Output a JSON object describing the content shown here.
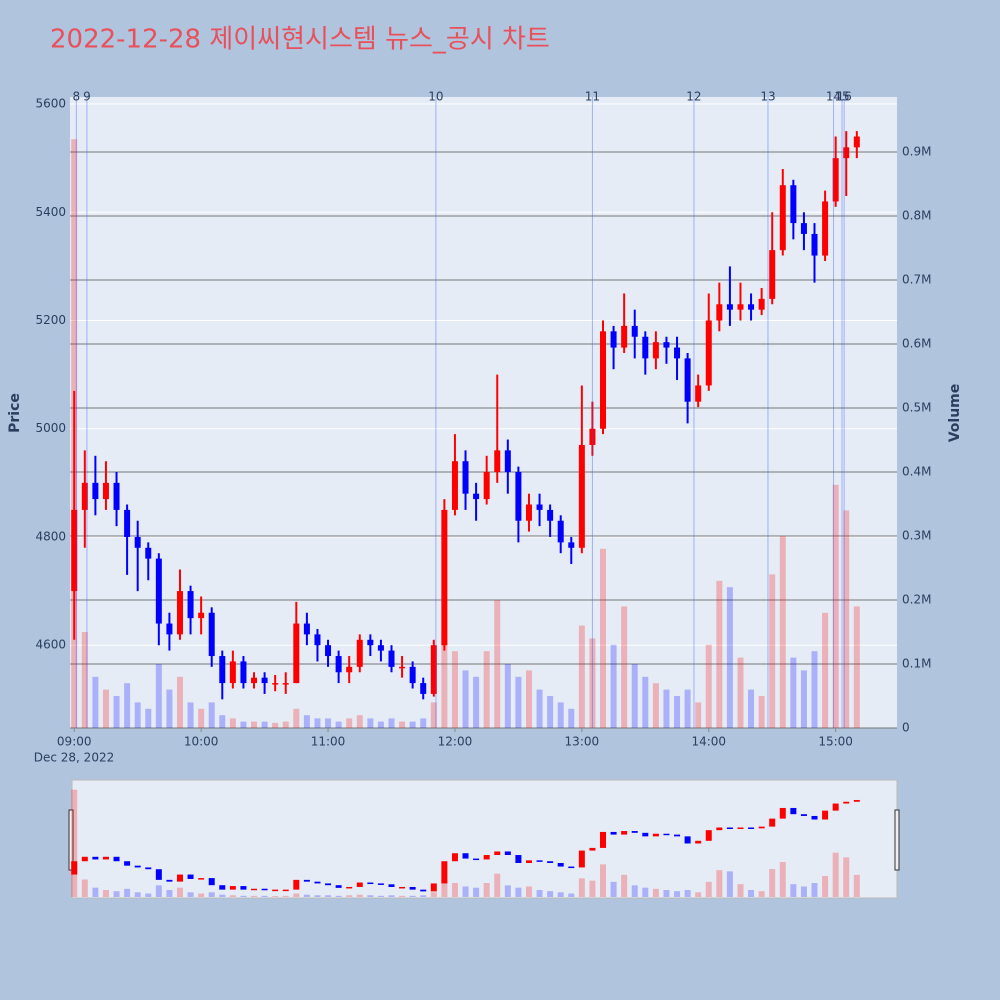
{
  "chart_data": {
    "type": "candlestick",
    "title": "2022-12-28 제이씨현시스템 뉴스_공시 차트",
    "ylabel": "Price",
    "y2label": "Volume",
    "x_date_label": "Dec 28, 2022",
    "up_color": "#ff0000",
    "down_color": "#0000ff",
    "grid": true,
    "rangeslider": true,
    "x": [
      "2022-12-28 09:00",
      "2022-12-28 09:05",
      "2022-12-28 09:10",
      "2022-12-28 09:15",
      "2022-12-28 09:20",
      "2022-12-28 09:25",
      "2022-12-28 09:30",
      "2022-12-28 09:35",
      "2022-12-28 09:40",
      "2022-12-28 09:45",
      "2022-12-28 09:50",
      "2022-12-28 09:55",
      "2022-12-28 10:00",
      "2022-12-28 10:05",
      "2022-12-28 10:10",
      "2022-12-28 10:15",
      "2022-12-28 10:20",
      "2022-12-28 10:25",
      "2022-12-28 10:30",
      "2022-12-28 10:35",
      "2022-12-28 10:40",
      "2022-12-28 10:45",
      "2022-12-28 10:50",
      "2022-12-28 10:55",
      "2022-12-28 11:00",
      "2022-12-28 11:05",
      "2022-12-28 11:10",
      "2022-12-28 11:15",
      "2022-12-28 11:20",
      "2022-12-28 11:25",
      "2022-12-28 11:30",
      "2022-12-28 11:35",
      "2022-12-28 11:40",
      "2022-12-28 11:45",
      "2022-12-28 11:50",
      "2022-12-28 11:55",
      "2022-12-28 12:00",
      "2022-12-28 12:05",
      "2022-12-28 12:10",
      "2022-12-28 12:15",
      "2022-12-28 12:20",
      "2022-12-28 12:25",
      "2022-12-28 12:30",
      "2022-12-28 12:35",
      "2022-12-28 12:40",
      "2022-12-28 12:45",
      "2022-12-28 12:50",
      "2022-12-28 12:55",
      "2022-12-28 13:00",
      "2022-12-28 13:05",
      "2022-12-28 13:10",
      "2022-12-28 13:15",
      "2022-12-28 13:20",
      "2022-12-28 13:25",
      "2022-12-28 13:30",
      "2022-12-28 13:35",
      "2022-12-28 13:40",
      "2022-12-28 13:45",
      "2022-12-28 13:50",
      "2022-12-28 13:55",
      "2022-12-28 14:00",
      "2022-12-28 14:05",
      "2022-12-28 14:10",
      "2022-12-28 14:15",
      "2022-12-28 14:20",
      "2022-12-28 14:25",
      "2022-12-28 14:30",
      "2022-12-28 14:35",
      "2022-12-28 14:40",
      "2022-12-28 14:45",
      "2022-12-28 14:50",
      "2022-12-28 14:55",
      "2022-12-28 15:00",
      "2022-12-28 15:05",
      "2022-12-28 15:10"
    ],
    "open": [
      4700,
      4850,
      4900,
      4870,
      4900,
      4850,
      4800,
      4780,
      4760,
      4640,
      4620,
      4700,
      4650,
      4660,
      4580,
      4530,
      4570,
      4530,
      4540,
      4530,
      4530,
      4530,
      4640,
      4620,
      4600,
      4580,
      4550,
      4560,
      4610,
      4600,
      4590,
      4560,
      4560,
      4530,
      4510,
      4600,
      4850,
      4940,
      4880,
      4870,
      4920,
      4960,
      4920,
      4830,
      4860,
      4850,
      4830,
      4790,
      4780,
      4970,
      5000,
      5180,
      5150,
      5190,
      5170,
      5130,
      5160,
      5150,
      5130,
      5050,
      5080,
      5200,
      5230,
      5220,
      5230,
      5220,
      5240,
      5330,
      5450,
      5380,
      5360,
      5320,
      5420,
      5500,
      5520
    ],
    "high": [
      5070,
      4960,
      4950,
      4940,
      4920,
      4860,
      4830,
      4790,
      4770,
      4660,
      4740,
      4710,
      4690,
      4670,
      4590,
      4590,
      4580,
      4550,
      4550,
      4545,
      4550,
      4680,
      4660,
      4630,
      4610,
      4590,
      4580,
      4620,
      4620,
      4610,
      4600,
      4580,
      4570,
      4540,
      4610,
      4870,
      4990,
      4960,
      4900,
      4950,
      5100,
      4980,
      4930,
      4880,
      4880,
      4860,
      4840,
      4800,
      5080,
      5050,
      5200,
      5190,
      5250,
      5220,
      5180,
      5180,
      5170,
      5170,
      5140,
      5100,
      5250,
      5270,
      5300,
      5270,
      5250,
      5260,
      5400,
      5480,
      5460,
      5400,
      5380,
      5440,
      5540,
      5550,
      5550
    ],
    "low": [
      4610,
      4780,
      4840,
      4850,
      4820,
      4730,
      4700,
      4720,
      4600,
      4590,
      4610,
      4620,
      4620,
      4560,
      4500,
      4520,
      4520,
      4520,
      4510,
      4515,
      4510,
      4530,
      4600,
      4570,
      4560,
      4530,
      4530,
      4550,
      4580,
      4570,
      4550,
      4540,
      4520,
      4500,
      4505,
      4590,
      4840,
      4850,
      4830,
      4860,
      4900,
      4880,
      4790,
      4810,
      4820,
      4800,
      4770,
      4750,
      4770,
      4950,
      4990,
      5110,
      5140,
      5130,
      5100,
      5110,
      5120,
      5090,
      5010,
      5040,
      5070,
      5180,
      5190,
      5200,
      5200,
      5210,
      5230,
      5320,
      5350,
      5330,
      5270,
      5310,
      5410,
      5430,
      5500
    ],
    "close": [
      4850,
      4900,
      4870,
      4900,
      4850,
      4800,
      4780,
      4760,
      4640,
      4620,
      4700,
      4650,
      4660,
      4580,
      4530,
      4570,
      4530,
      4540,
      4530,
      4530,
      4530,
      4640,
      4620,
      4600,
      4580,
      4550,
      4560,
      4610,
      4600,
      4590,
      4560,
      4560,
      4530,
      4510,
      4600,
      4850,
      4940,
      4880,
      4870,
      4920,
      4960,
      4920,
      4830,
      4860,
      4850,
      4830,
      4790,
      4780,
      4970,
      5000,
      5180,
      5150,
      5190,
      5170,
      5130,
      5160,
      5150,
      5130,
      5050,
      5080,
      5200,
      5230,
      5220,
      5230,
      5220,
      5240,
      5330,
      5450,
      5380,
      5360,
      5320,
      5420,
      5500,
      5520,
      5540
    ],
    "volume": [
      920000,
      150000,
      80000,
      60000,
      50000,
      70000,
      40000,
      30000,
      100000,
      60000,
      80000,
      40000,
      30000,
      40000,
      20000,
      15000,
      10000,
      10000,
      10000,
      8000,
      10000,
      30000,
      20000,
      15000,
      15000,
      10000,
      15000,
      20000,
      15000,
      10000,
      15000,
      10000,
      10000,
      15000,
      40000,
      150000,
      120000,
      90000,
      80000,
      120000,
      200000,
      100000,
      80000,
      90000,
      60000,
      50000,
      40000,
      30000,
      160000,
      140000,
      280000,
      130000,
      190000,
      100000,
      80000,
      70000,
      60000,
      50000,
      60000,
      40000,
      130000,
      230000,
      220000,
      110000,
      60000,
      50000,
      240000,
      300000,
      110000,
      90000,
      120000,
      180000,
      380000,
      340000,
      190000
    ],
    "xlim": [
      "2022-12-28 08:58",
      "2022-12-28 15:29"
    ],
    "xticks": [
      {
        "value": "2022-12-28 09:00",
        "label": "09:00"
      },
      {
        "value": "2022-12-28 10:00",
        "label": "10:00"
      },
      {
        "value": "2022-12-28 11:00",
        "label": "11:00"
      },
      {
        "value": "2022-12-28 12:00",
        "label": "12:00"
      },
      {
        "value": "2022-12-28 13:00",
        "label": "13:00"
      },
      {
        "value": "2022-12-28 14:00",
        "label": "14:00"
      },
      {
        "value": "2022-12-28 15:00",
        "label": "15:00"
      }
    ],
    "ylim": [
      4447,
      5613
    ],
    "yticks": [
      4600,
      4800,
      5000,
      5200,
      5400,
      5600
    ],
    "y2lim": [
      0,
      986000
    ],
    "y2ticks": [
      0,
      {
        "value": 100000,
        "label": "0.1M"
      },
      {
        "value": 200000,
        "label": "0.2M"
      },
      {
        "value": 300000,
        "label": "0.3M"
      },
      {
        "value": 400000,
        "label": "0.4M"
      },
      {
        "value": 500000,
        "label": "0.5M"
      },
      {
        "value": 600000,
        "label": "0.6M"
      },
      {
        "value": 700000,
        "label": "0.7M"
      },
      {
        "value": 800000,
        "label": "0.8M"
      },
      {
        "value": 900000,
        "label": "0.9M"
      }
    ],
    "events": [
      {
        "x": "2022-12-28 09:01",
        "label": "8"
      },
      {
        "x": "2022-12-28 09:06",
        "label": "9"
      },
      {
        "x": "2022-12-28 11:51",
        "label": "10"
      },
      {
        "x": "2022-12-28 13:05",
        "label": "11"
      },
      {
        "x": "2022-12-28 13:53",
        "label": "12"
      },
      {
        "x": "2022-12-28 14:28",
        "label": "13"
      },
      {
        "x": "2022-12-28 14:59",
        "label": "14"
      },
      {
        "x": "2022-12-28 15:03",
        "label": "15"
      },
      {
        "x": "2022-12-28 15:04",
        "label": "16"
      }
    ]
  }
}
